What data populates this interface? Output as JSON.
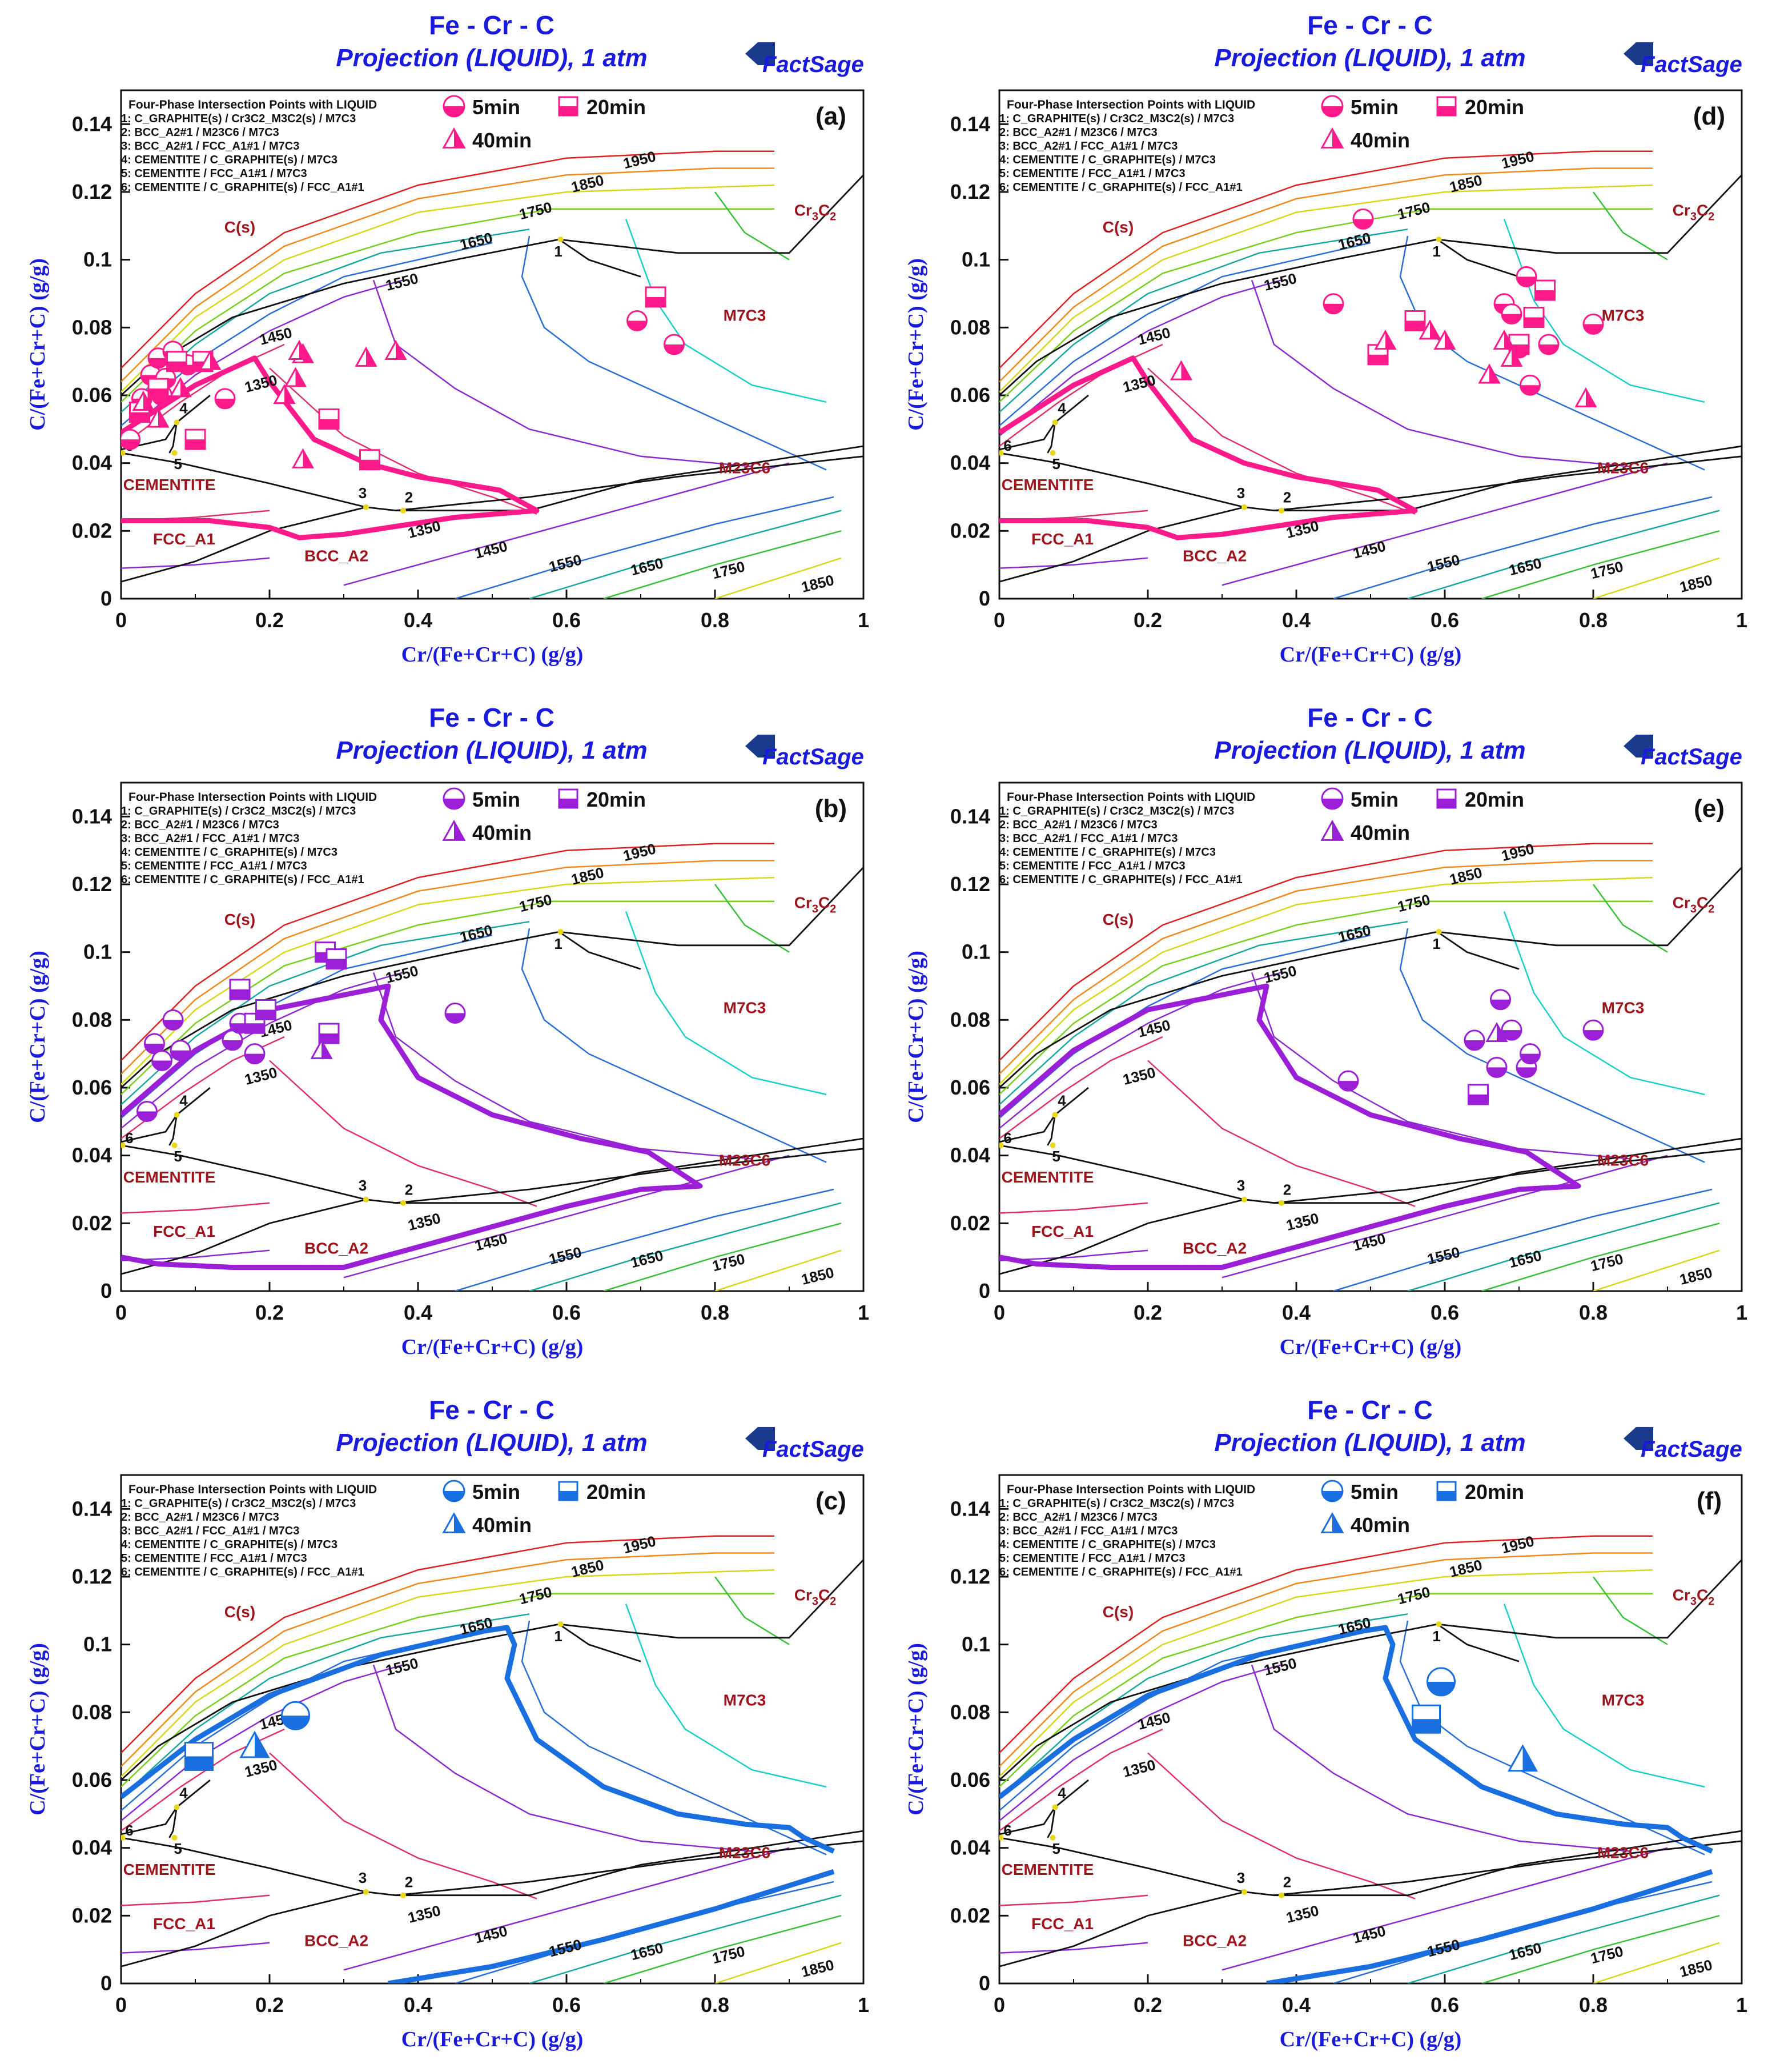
{
  "figure": {
    "panel_title": "Fe - Cr - C",
    "panel_subtitle": "Projection (LIQUID),  1 atm",
    "logo_text": "FactSage",
    "x_axis_label": "Cr/(Fe+Cr+C) (g/g)",
    "y_axis_label": "C/(Fe+Cr+C) (g/g)",
    "x_ticks": [
      "0",
      "0.2",
      "0.4",
      "0.6",
      "0.8",
      "1"
    ],
    "y_ticks": [
      "0",
      "0.02",
      "0.04",
      "0.06",
      "0.08",
      "0.1",
      "0.12",
      "0.14"
    ],
    "intersection_heading": "Four-Phase Intersection Points with LIQUID",
    "intersection_points": [
      "1:  C_GRAPHITE(s) / Cr3C2_M3C2(s) / M7C3",
      "2:  BCC_A2#1 / M23C6 / M7C3",
      "3:  BCC_A2#1 / FCC_A1#1 / M7C3",
      "4:  CEMENTITE / C_GRAPHITE(s) / M7C3",
      "5:  CEMENTITE / FCC_A1#1 / M7C3",
      "6:  CEMENTITE / C_GRAPHITE(s) / FCC_A1#1"
    ],
    "phase_labels": [
      "C(s)",
      "M7C3",
      "M23C6",
      "CEMENTITE",
      "FCC_A1",
      "BCC_A2",
      "Cr",
      "3",
      "C",
      "2"
    ],
    "point_numbers": [
      "1",
      "2",
      "3",
      "4",
      "5",
      "6"
    ],
    "isotherm_labels": [
      "1350",
      "1350",
      "1450",
      "1450",
      "1550",
      "1550",
      "1650",
      "1650",
      "1750",
      "1750",
      "1850",
      "1850",
      "1950"
    ],
    "legend_5min": "5min",
    "legend_20min": "20min",
    "legend_40min": "40min",
    "colors": {
      "pink": "#ff1a8c",
      "purple": "#9b1fd6",
      "blue": "#1a6fe0",
      "title_blue": "#1a1adc",
      "phase_red": "#a0141e"
    }
  },
  "chart_data": [
    {
      "panel_label": "(a)",
      "type": "scatter",
      "series_color": "#ff1a8c",
      "xlim": [
        0,
        1
      ],
      "ylim": [
        0,
        0.15
      ],
      "series": [
        {
          "name": "5min",
          "x": [
            0.012,
            0.028,
            0.04,
            0.05,
            0.055,
            0.06,
            0.07,
            0.09,
            0.14,
            0.695,
            0.745
          ],
          "y": [
            0.047,
            0.059,
            0.066,
            0.071,
            0.06,
            0.065,
            0.073,
            0.069,
            0.059,
            0.082,
            0.075
          ]
        },
        {
          "name": "20min",
          "x": [
            0.025,
            0.05,
            0.075,
            0.1,
            0.11,
            0.28,
            0.335,
            0.72
          ],
          "y": [
            0.055,
            0.062,
            0.07,
            0.047,
            0.07,
            0.053,
            0.041,
            0.089
          ]
        },
        {
          "name": "40min",
          "x": [
            0.03,
            0.05,
            0.08,
            0.12,
            0.22,
            0.235,
            0.245,
            0.24,
            0.245,
            0.33,
            0.37
          ],
          "y": [
            0.058,
            0.053,
            0.062,
            0.07,
            0.06,
            0.065,
            0.072,
            0.073,
            0.041,
            0.071,
            0.073
          ]
        }
      ]
    },
    {
      "panel_label": "(d)",
      "type": "scatter",
      "series_color": "#ff1a8c",
      "xlim": [
        0,
        1
      ],
      "ylim": [
        0,
        0.15
      ],
      "series": [
        {
          "name": "5min",
          "x": [
            0.45,
            0.49,
            0.68,
            0.69,
            0.7,
            0.71,
            0.715,
            0.72,
            0.74,
            0.8
          ],
          "y": [
            0.087,
            0.112,
            0.087,
            0.084,
            0.074,
            0.095,
            0.063,
            0.083,
            0.075,
            0.081
          ]
        },
        {
          "name": "20min",
          "x": [
            0.51,
            0.56,
            0.7,
            0.72,
            0.735
          ],
          "y": [
            0.072,
            0.082,
            0.075,
            0.083,
            0.091
          ]
        },
        {
          "name": "40min",
          "x": [
            0.245,
            0.52,
            0.58,
            0.6,
            0.66,
            0.68,
            0.69,
            0.79
          ],
          "y": [
            0.067,
            0.076,
            0.079,
            0.076,
            0.066,
            0.076,
            0.071,
            0.059
          ]
        }
      ]
    },
    {
      "panel_label": "(b)",
      "type": "scatter",
      "series_color": "#9b1fd6",
      "xlim": [
        0,
        1
      ],
      "ylim": [
        0,
        0.15
      ],
      "series": [
        {
          "name": "5min",
          "x": [
            0.035,
            0.045,
            0.055,
            0.07,
            0.08,
            0.15,
            0.16,
            0.18,
            0.45
          ],
          "y": [
            0.053,
            0.073,
            0.068,
            0.08,
            0.071,
            0.074,
            0.079,
            0.07,
            0.082
          ]
        },
        {
          "name": "20min",
          "x": [
            0.16,
            0.18,
            0.195,
            0.275,
            0.28,
            0.29
          ],
          "y": [
            0.089,
            0.079,
            0.083,
            0.1,
            0.076,
            0.098
          ]
        },
        {
          "name": "40min",
          "x": [
            0.27
          ],
          "y": [
            0.071
          ]
        }
      ]
    },
    {
      "panel_label": "(e)",
      "type": "scatter",
      "series_color": "#9b1fd6",
      "xlim": [
        0,
        1
      ],
      "ylim": [
        0,
        0.15
      ],
      "series": [
        {
          "name": "5min",
          "x": [
            0.47,
            0.64,
            0.67,
            0.675,
            0.69,
            0.71,
            0.715,
            0.8
          ],
          "y": [
            0.062,
            0.074,
            0.066,
            0.086,
            0.077,
            0.066,
            0.07,
            0.077
          ]
        },
        {
          "name": "20min",
          "x": [
            0.645
          ],
          "y": [
            0.058
          ]
        },
        {
          "name": "40min",
          "x": [
            0.67
          ],
          "y": [
            0.076
          ]
        }
      ]
    },
    {
      "panel_label": "(c)",
      "type": "scatter",
      "series_color": "#1a6fe0",
      "xlim": [
        0,
        1
      ],
      "ylim": [
        0,
        0.15
      ],
      "series": [
        {
          "name": "5min",
          "x": [
            0.235
          ],
          "y": [
            0.079
          ]
        },
        {
          "name": "20min",
          "x": [
            0.105
          ],
          "y": [
            0.067
          ]
        },
        {
          "name": "40min",
          "x": [
            0.18
          ],
          "y": [
            0.07
          ]
        }
      ]
    },
    {
      "panel_label": "(f)",
      "type": "scatter",
      "series_color": "#1a6fe0",
      "xlim": [
        0,
        1
      ],
      "ylim": [
        0,
        0.15
      ],
      "series": [
        {
          "name": "5min",
          "x": [
            0.595
          ],
          "y": [
            0.089
          ]
        },
        {
          "name": "20min",
          "x": [
            0.575
          ],
          "y": [
            0.078
          ]
        },
        {
          "name": "40min",
          "x": [
            0.705
          ],
          "y": [
            0.066
          ]
        }
      ]
    }
  ]
}
